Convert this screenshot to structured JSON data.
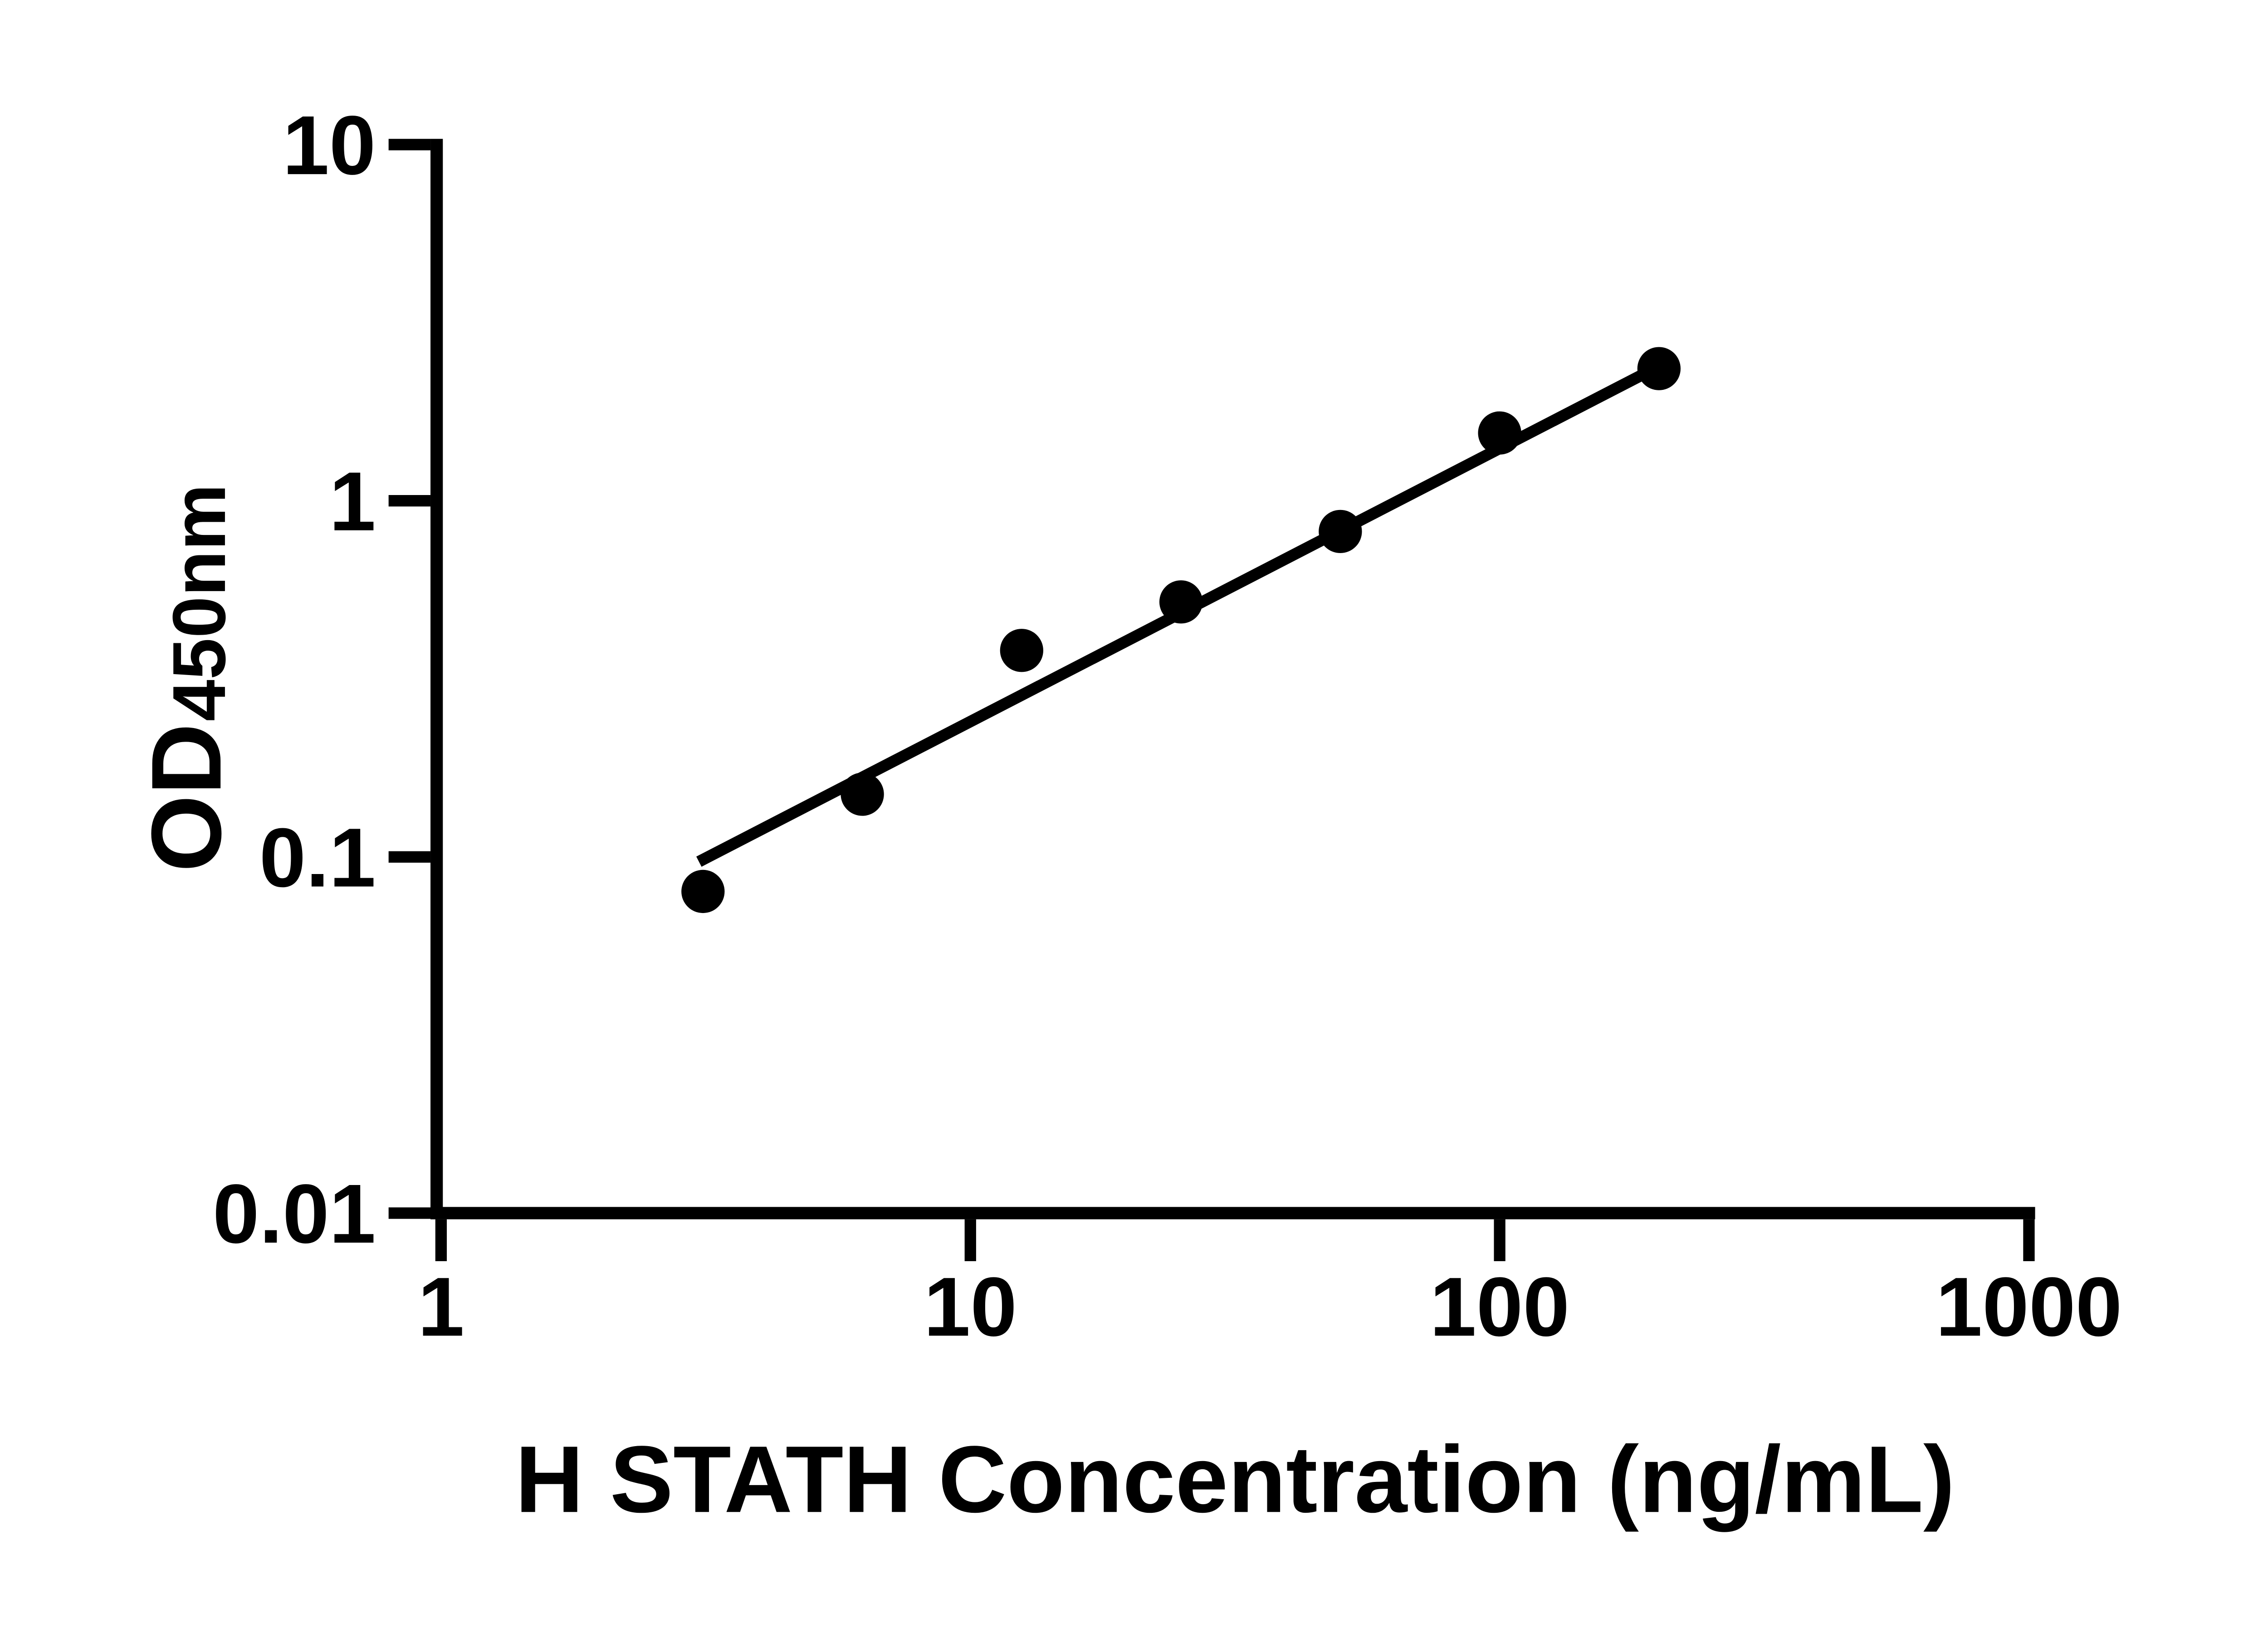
{
  "figure": {
    "background_color": "#ffffff",
    "ink_color": "#000000",
    "title": ""
  },
  "chart_data": {
    "type": "scatter",
    "title": "",
    "xlabel": "H STATH Concentration (ng/mL)",
    "ylabel": "OD",
    "ylabel_subscript": "450nm",
    "x_scale": "log10",
    "y_scale": "log10",
    "xlim": [
      1,
      1000
    ],
    "ylim": [
      0.01,
      10
    ],
    "x_ticks": [
      1,
      10,
      100,
      1000
    ],
    "y_ticks": [
      10,
      1,
      0.1,
      0.01
    ],
    "grid": false,
    "legend": false,
    "series": [
      {
        "name": "standard-points",
        "type": "scatter",
        "marker": "filled-circle",
        "color": "#000000",
        "x": [
          3.125,
          6.25,
          12.5,
          25,
          50,
          100,
          200
        ],
        "y": [
          0.08,
          0.15,
          0.38,
          0.52,
          0.82,
          1.55,
          2.35
        ]
      },
      {
        "name": "fit-line",
        "type": "line",
        "color": "#000000",
        "x": [
          3.07,
          196
        ],
        "y": [
          0.097,
          2.35
        ]
      }
    ]
  }
}
